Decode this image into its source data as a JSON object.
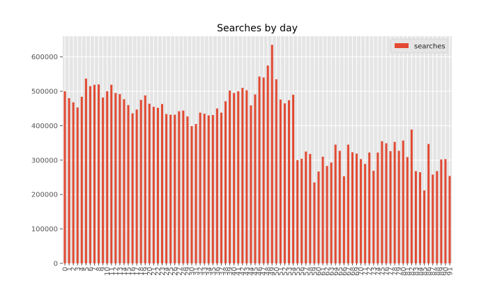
{
  "chart_data": {
    "type": "bar",
    "title": "Searches by day",
    "xlabel": "",
    "ylabel": "",
    "ylim": [
      0,
      660000
    ],
    "yticks": [
      0,
      100000,
      200000,
      300000,
      400000,
      500000,
      600000
    ],
    "ytick_labels": [
      "0",
      "100000",
      "200000",
      "300000",
      "400000",
      "500000",
      "600000"
    ],
    "grid": true,
    "legend_position": "top-right",
    "colors": {
      "plot_background": "#e5e5e5",
      "grid": "#ffffff",
      "bar": "#e24a33",
      "tick_text": "#555555"
    },
    "categories": [
      "0",
      "1",
      "2",
      "3",
      "4",
      "5",
      "6",
      "7",
      "8",
      "9",
      "10",
      "11",
      "12",
      "13",
      "14",
      "15",
      "16",
      "17",
      "18",
      "19",
      "20",
      "21",
      "22",
      "23",
      "24",
      "25",
      "26",
      "27",
      "28",
      "29",
      "30",
      "31",
      "32",
      "33",
      "34",
      "35",
      "36",
      "37",
      "38",
      "39",
      "40",
      "41",
      "42",
      "43",
      "44",
      "45",
      "46",
      "47",
      "48",
      "49",
      "50",
      "51",
      "52",
      "53",
      "54",
      "55",
      "56",
      "57",
      "58",
      "59",
      "60",
      "61",
      "62",
      "63",
      "64",
      "65",
      "66",
      "67",
      "68",
      "69",
      "70",
      "71",
      "72",
      "73",
      "74",
      "75",
      "76",
      "77",
      "78",
      "79",
      "80",
      "81",
      "82",
      "83",
      "84",
      "85",
      "86",
      "87",
      "88",
      "89",
      "90",
      "91"
    ],
    "series": [
      {
        "name": "searches",
        "values": [
          500000,
          480000,
          468000,
          453000,
          484000,
          537000,
          515000,
          519000,
          520000,
          482000,
          500000,
          519000,
          495000,
          492000,
          477000,
          460000,
          436000,
          447000,
          475000,
          488000,
          464000,
          455000,
          452000,
          463000,
          434000,
          432000,
          432000,
          442000,
          444000,
          427000,
          399000,
          405000,
          438000,
          435000,
          430000,
          431000,
          450000,
          438000,
          471000,
          502000,
          495000,
          500000,
          510000,
          503000,
          459000,
          491000,
          543000,
          540000,
          575000,
          635000,
          535000,
          476000,
          465000,
          474000,
          490000,
          300000,
          304000,
          325000,
          318000,
          235000,
          267000,
          310000,
          283000,
          293000,
          345000,
          327000,
          253000,
          345000,
          323000,
          319000,
          303000,
          289000,
          322000,
          269000,
          322000,
          355000,
          349000,
          326000,
          353000,
          327000,
          357000,
          309000,
          389000,
          268000,
          265000,
          212000,
          347000,
          258000,
          268000,
          302000,
          303000,
          254000
        ]
      }
    ]
  }
}
